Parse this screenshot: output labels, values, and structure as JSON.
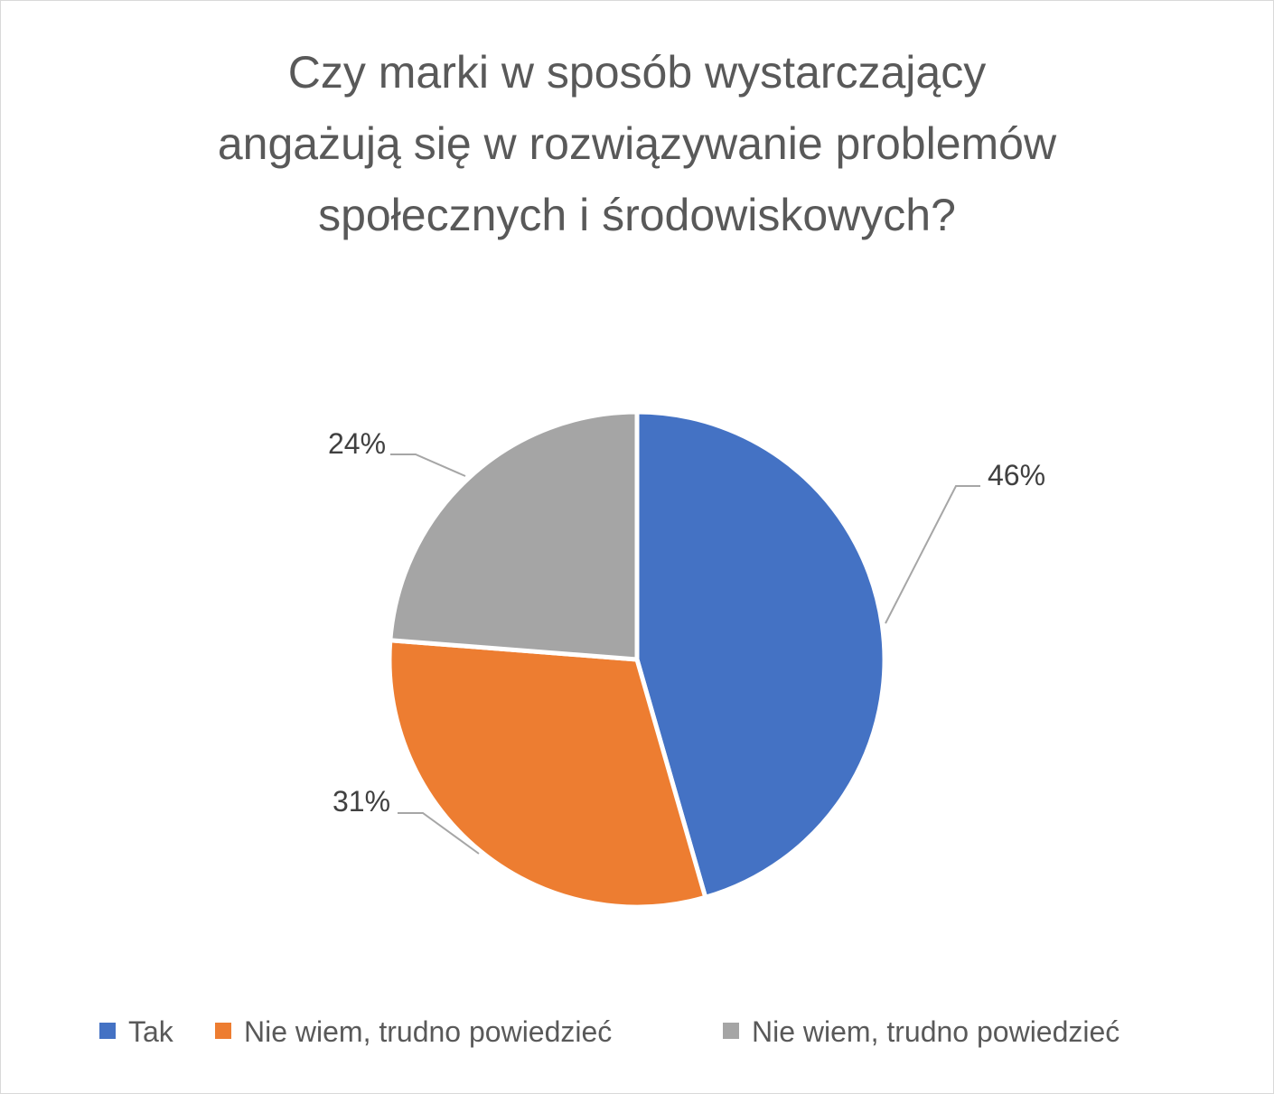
{
  "chart_data": {
    "type": "pie",
    "title_lines": [
      "Czy marki w sposób wystarczający",
      "angażują się w rozwiązywanie problemów",
      "społecznych i środowiskowych?"
    ],
    "categories": [
      "Tak",
      "Nie wiem, trudno powiedzieć",
      "Nie wiem, trudno powiedzieć"
    ],
    "values": [
      46,
      31,
      24
    ],
    "unit": "%",
    "data_labels": [
      "46%",
      "31%",
      "24%"
    ],
    "colors": [
      "#4472c4",
      "#ed7d31",
      "#a5a5a5"
    ],
    "start_angle_deg": 0,
    "direction": "clockwise",
    "legend_position": "bottom"
  }
}
